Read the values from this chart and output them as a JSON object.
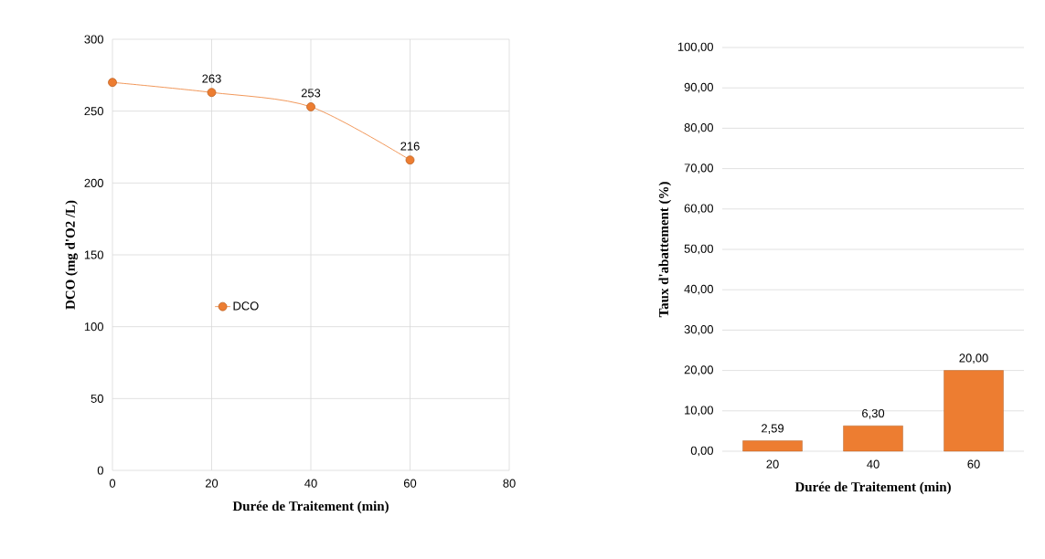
{
  "chart_data": [
    {
      "type": "line",
      "x": [
        0,
        20,
        40,
        60
      ],
      "xlim": [
        0,
        80
      ],
      "xticks": [
        0,
        20,
        40,
        60,
        80
      ],
      "ylim": [
        0,
        300
      ],
      "yticks": [
        0,
        50,
        100,
        150,
        200,
        250,
        300
      ],
      "xlabel": "Durée de Traitement (min)",
      "ylabel": "DCO (mg d'O2 /L)",
      "grid": true,
      "legend": "left",
      "marker": "circle",
      "series": [
        {
          "name": "DCO",
          "color": "#ed7d31",
          "values": [
            270,
            263,
            253,
            216
          ],
          "value_labels": [
            null,
            "263",
            "253",
            "216"
          ]
        }
      ]
    },
    {
      "type": "bar",
      "categories": [
        "20",
        "40",
        "60"
      ],
      "ylim": [
        0,
        100
      ],
      "yticks": [
        {
          "value": 0,
          "label": "0,00"
        },
        {
          "value": 10,
          "label": "10,00"
        },
        {
          "value": 20,
          "label": "20,00"
        },
        {
          "value": 30,
          "label": "30,00"
        },
        {
          "value": 40,
          "label": "40,00"
        },
        {
          "value": 50,
          "label": "50,00"
        },
        {
          "value": 60,
          "label": "60,00"
        },
        {
          "value": 70,
          "label": "70,00"
        },
        {
          "value": 80,
          "label": "80,00"
        },
        {
          "value": 90,
          "label": "90,00"
        },
        {
          "value": 100,
          "label": "100,00"
        }
      ],
      "xlabel": "Durée de Traitement (min)",
      "ylabel": "Taux d'abattement (%)",
      "grid": "y",
      "color": "#ed7d31",
      "values": [
        2.59,
        6.3,
        20.0
      ],
      "value_labels": [
        "2,59",
        "6,30",
        "20,00"
      ]
    }
  ]
}
